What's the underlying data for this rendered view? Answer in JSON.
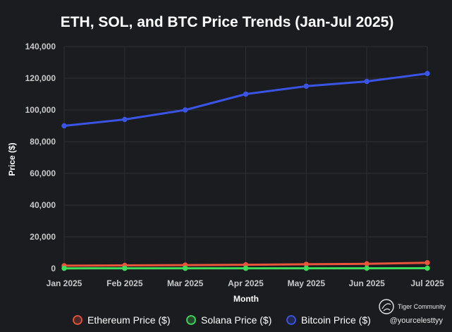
{
  "chart_data": {
    "type": "line",
    "title": "ETH, SOL, and BTC Price Trends (Jan-Jul 2025)",
    "xlabel": "Month",
    "ylabel": "Price ($)",
    "categories": [
      "Jan 2025",
      "Feb 2025",
      "Mar 2025",
      "Apr 2025",
      "May 2025",
      "Jun 2025",
      "Jul 2025"
    ],
    "ylim": [
      0,
      140000
    ],
    "yticks": [
      0,
      20000,
      40000,
      60000,
      80000,
      100000,
      120000,
      140000
    ],
    "ytick_labels": [
      "0",
      "20,000",
      "40,000",
      "60,000",
      "80,000",
      "100,000",
      "120,000",
      "140,000"
    ],
    "grid": true,
    "legend_position": "bottom",
    "series": [
      {
        "name": "Ethereum Price ($)",
        "color": "#e8553d",
        "values": [
          1800,
          2000,
          2200,
          2400,
          2700,
          3000,
          3700
        ]
      },
      {
        "name": "Solana Price ($)",
        "color": "#3ddc5b",
        "values": [
          150,
          160,
          170,
          180,
          190,
          200,
          220
        ]
      },
      {
        "name": "Bitcoin Price ($)",
        "color": "#3a55e6",
        "values": [
          90000,
          94000,
          100000,
          110000,
          115000,
          118000,
          123000
        ]
      }
    ]
  },
  "watermark": {
    "brand": "Tiger Community",
    "handle": "@yourcelesttyy",
    "icon": "tiger-logo-icon"
  },
  "colors": {
    "background": "#1b1c20",
    "grid": "#2e2f34"
  }
}
